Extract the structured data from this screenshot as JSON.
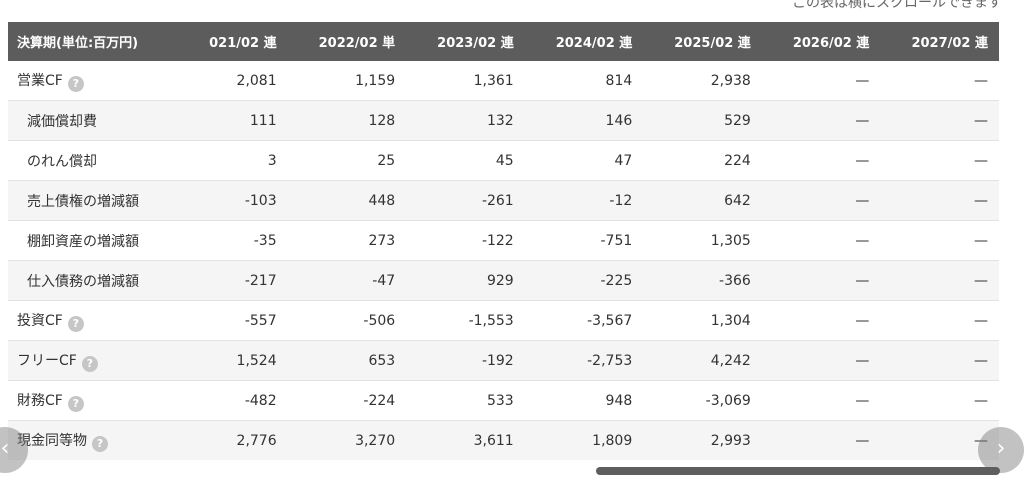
{
  "scroll_hint": "この表は横にスクロールできます",
  "header": {
    "first": "決算期(単位:百万円)",
    "cols": [
      "021/02 連",
      "2022/02 単",
      "2023/02 連",
      "2024/02 連",
      "2025/02 連",
      "2026/02 連",
      "2027/02 連"
    ]
  },
  "rows": [
    {
      "label": "営業CF",
      "help": "?",
      "values": [
        "2,081",
        "1,159",
        "1,361",
        "814",
        "2,938",
        "—",
        "—"
      ]
    },
    {
      "label": "減価償却費",
      "values": [
        "111",
        "128",
        "132",
        "146",
        "529",
        "—",
        "—"
      ]
    },
    {
      "label": "のれん償却",
      "values": [
        "3",
        "25",
        "45",
        "47",
        "224",
        "—",
        "—"
      ]
    },
    {
      "label": "売上債権の増減額",
      "values": [
        "-103",
        "448",
        "-261",
        "-12",
        "642",
        "—",
        "—"
      ]
    },
    {
      "label": "棚卸資産の増減額",
      "values": [
        "-35",
        "273",
        "-122",
        "-751",
        "1,305",
        "—",
        "—"
      ]
    },
    {
      "label": "仕入債務の増減額",
      "values": [
        "-217",
        "-47",
        "929",
        "-225",
        "-366",
        "—",
        "—"
      ]
    },
    {
      "label": "投資CF",
      "help": "?",
      "values": [
        "-557",
        "-506",
        "-1,553",
        "-3,567",
        "1,304",
        "—",
        "—"
      ]
    },
    {
      "label": "フリーCF",
      "help": "?",
      "values": [
        "1,524",
        "653",
        "-192",
        "-2,753",
        "4,242",
        "—",
        "—"
      ]
    },
    {
      "label": "財務CF",
      "help": "?",
      "values": [
        "-482",
        "-224",
        "533",
        "948",
        "-3,069",
        "—",
        "—"
      ]
    },
    {
      "label": "現金同等物",
      "help": "?",
      "values": [
        "2,776",
        "3,270",
        "3,611",
        "1,809",
        "2,993",
        "—",
        "—"
      ]
    }
  ],
  "nav": {
    "prev": "‹",
    "next": "›"
  }
}
